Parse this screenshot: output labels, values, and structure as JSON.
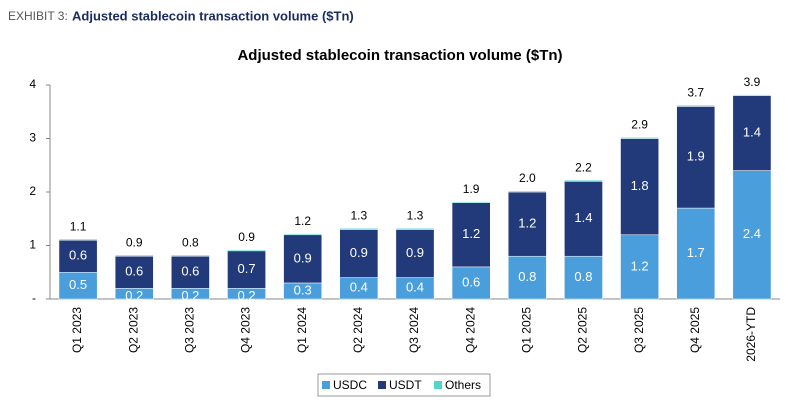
{
  "header": {
    "label": "EXHIBIT 3:",
    "title": "Adjusted stablecoin transaction volume ($Tn)"
  },
  "chart_data": {
    "type": "stacked-bar",
    "title": "Adjusted stablecoin transaction volume ($Tn)",
    "categories": [
      "Q1 2023",
      "Q2 2023",
      "Q3 2023",
      "Q4 2023",
      "Q1 2024",
      "Q2 2024",
      "Q3 2024",
      "Q4 2024",
      "Q1 2025",
      "Q2 2025",
      "Q3 2025",
      "Q4 2025",
      "2026-YTD"
    ],
    "series": [
      {
        "name": "USDC",
        "color": "#4a9edb",
        "values": [
          0.5,
          0.2,
          0.2,
          0.2,
          0.3,
          0.4,
          0.4,
          0.6,
          0.8,
          0.8,
          1.2,
          1.7,
          2.4
        ]
      },
      {
        "name": "USDT",
        "color": "#22397a",
        "values": [
          0.6,
          0.6,
          0.6,
          0.7,
          0.9,
          0.9,
          0.9,
          1.2,
          1.2,
          1.4,
          1.8,
          1.9,
          1.4
        ]
      },
      {
        "name": "Others",
        "color": "#4fd6c8",
        "values": [
          0.02,
          0.02,
          0.02,
          0.02,
          0.02,
          0.02,
          0.02,
          0.02,
          0.02,
          0.02,
          0.02,
          0.02,
          0.02
        ]
      }
    ],
    "totals": {
      "values": [
        1.1,
        0.9,
        0.8,
        0.9,
        1.2,
        1.3,
        1.3,
        1.9,
        2.0,
        2.2,
        2.9,
        3.7,
        3.9
      ],
      "value_labels": [
        "1.1",
        "0.9",
        "0.8",
        "0.9",
        "1.2",
        "1.3",
        "1.3",
        "1.9",
        "2.0",
        "2.2",
        "2.9",
        "3.7",
        "3.9"
      ]
    },
    "ylim": [
      0,
      4
    ],
    "yticks": [
      {
        "value": 0,
        "label": "-"
      },
      1,
      2,
      3,
      4
    ],
    "legend": "bottom"
  }
}
